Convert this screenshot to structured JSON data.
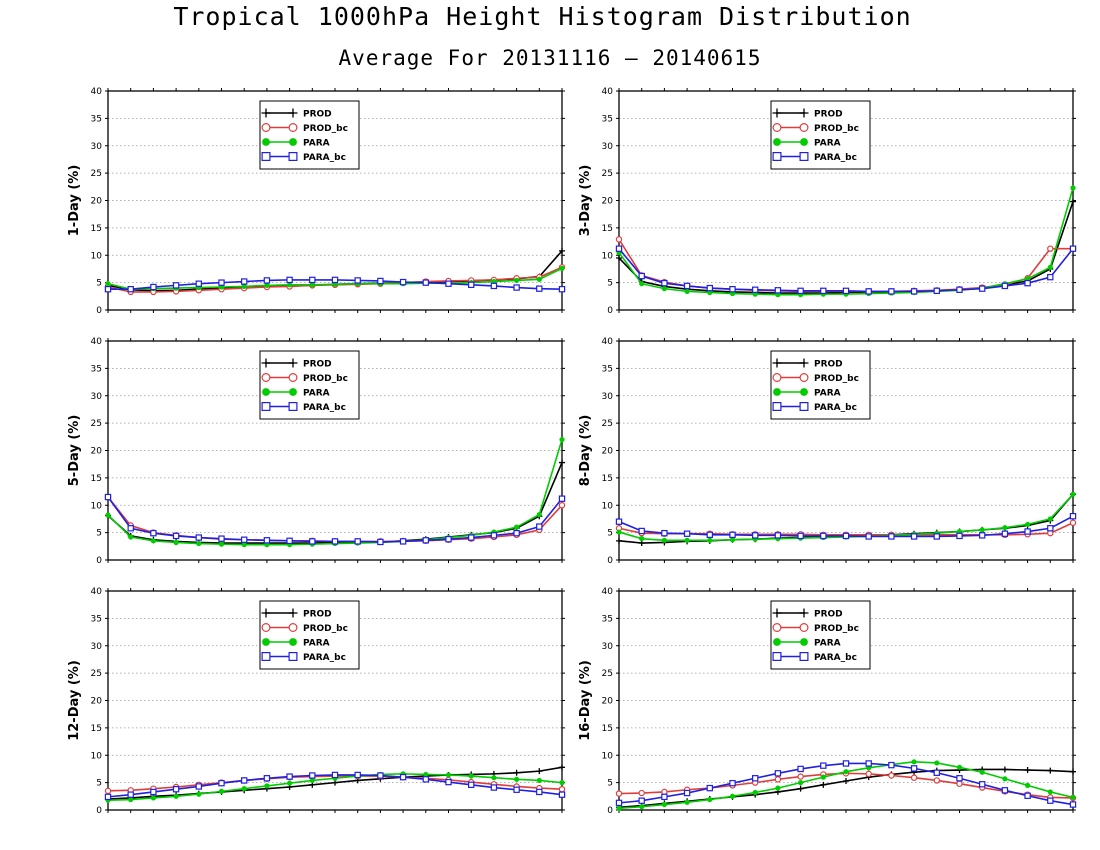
{
  "title": "Tropical 1000hPa Height Histogram Distribution",
  "subtitle": "Average For 20131116 – 20140615",
  "chart_data": [
    {
      "type": "line",
      "ylabel": "1-Day (%)",
      "ylim": [
        0,
        40
      ],
      "yticks": [
        0,
        5,
        10,
        15,
        20,
        25,
        30,
        35,
        40
      ],
      "grid": true,
      "legend_position": "top-left",
      "series": [
        {
          "name": "PROD",
          "color": "#000000",
          "marker": "plus",
          "values": [
            4.5,
            3.7,
            3.5,
            3.6,
            3.8,
            4.0,
            4.2,
            4.3,
            4.4,
            4.5,
            4.7,
            4.8,
            4.9,
            5.0,
            5.1,
            5.2,
            5.3,
            5.5,
            5.7,
            6.1,
            10.8
          ]
        },
        {
          "name": "PROD_bc",
          "color": "#e03c3c",
          "marker": "circle",
          "values": [
            4.2,
            3.3,
            3.3,
            3.4,
            3.6,
            3.8,
            4.0,
            4.2,
            4.3,
            4.5,
            4.6,
            4.7,
            4.8,
            5.0,
            5.2,
            5.3,
            5.4,
            5.5,
            5.8,
            6.0,
            7.8
          ]
        },
        {
          "name": "PARA",
          "color": "#00cc00",
          "marker": "filled-circle",
          "values": [
            4.8,
            3.8,
            3.9,
            4.0,
            4.1,
            4.2,
            4.3,
            4.5,
            4.6,
            4.6,
            4.7,
            4.8,
            4.8,
            4.8,
            4.9,
            4.9,
            5.0,
            5.2,
            5.4,
            5.6,
            7.6
          ]
        },
        {
          "name": "PARA_bc",
          "color": "#2020e0",
          "marker": "square",
          "values": [
            3.8,
            3.8,
            4.2,
            4.5,
            4.8,
            5.0,
            5.2,
            5.4,
            5.5,
            5.5,
            5.5,
            5.4,
            5.3,
            5.1,
            5.0,
            4.8,
            4.6,
            4.4,
            4.1,
            3.9,
            3.8
          ]
        }
      ]
    },
    {
      "type": "line",
      "ylabel": "3-Day (%)",
      "ylim": [
        0,
        40
      ],
      "yticks": [
        0,
        5,
        10,
        15,
        20,
        25,
        30,
        35,
        40
      ],
      "grid": true,
      "legend_position": "top-center",
      "series": [
        {
          "name": "PROD",
          "color": "#000000",
          "marker": "plus",
          "values": [
            9.5,
            5.2,
            4.3,
            3.8,
            3.5,
            3.3,
            3.2,
            3.1,
            3.1,
            3.1,
            3.2,
            3.3,
            3.3,
            3.4,
            3.5,
            3.7,
            4.0,
            4.6,
            5.3,
            7.5,
            19.8
          ]
        },
        {
          "name": "PROD_bc",
          "color": "#e03c3c",
          "marker": "circle",
          "values": [
            12.9,
            6.3,
            5.1,
            4.4,
            4.0,
            3.8,
            3.6,
            3.5,
            3.4,
            3.4,
            3.4,
            3.4,
            3.4,
            3.5,
            3.6,
            3.8,
            4.1,
            4.6,
            5.8,
            11.2,
            11.2
          ]
        },
        {
          "name": "PARA",
          "color": "#00cc00",
          "marker": "filled-circle",
          "values": [
            10.5,
            4.8,
            3.9,
            3.4,
            3.2,
            3.0,
            2.9,
            2.8,
            2.8,
            2.9,
            2.9,
            3.0,
            3.1,
            3.2,
            3.4,
            3.6,
            4.0,
            4.8,
            5.7,
            7.8,
            22.3
          ]
        },
        {
          "name": "PARA_bc",
          "color": "#2020e0",
          "marker": "square",
          "values": [
            11.2,
            6.2,
            4.9,
            4.4,
            4.0,
            3.8,
            3.7,
            3.6,
            3.5,
            3.5,
            3.5,
            3.4,
            3.4,
            3.4,
            3.5,
            3.7,
            3.9,
            4.4,
            4.9,
            6.0,
            11.2
          ]
        }
      ]
    },
    {
      "type": "line",
      "ylabel": "5-Day (%)",
      "ylim": [
        0,
        40
      ],
      "yticks": [
        0,
        5,
        10,
        15,
        20,
        25,
        30,
        35,
        40
      ],
      "grid": true,
      "legend_position": "top-left",
      "series": [
        {
          "name": "PROD",
          "color": "#000000",
          "marker": "plus",
          "values": [
            8.1,
            4.4,
            3.7,
            3.4,
            3.2,
            3.1,
            3.1,
            3.1,
            3.1,
            3.1,
            3.2,
            3.3,
            3.3,
            3.5,
            3.8,
            4.2,
            4.6,
            5.0,
            5.8,
            8.0,
            17.8
          ]
        },
        {
          "name": "PROD_bc",
          "color": "#e03c3c",
          "marker": "circle",
          "values": [
            11.5,
            6.3,
            5.0,
            4.5,
            4.1,
            3.8,
            3.7,
            3.6,
            3.5,
            3.5,
            3.4,
            3.4,
            3.4,
            3.4,
            3.5,
            3.7,
            3.9,
            4.2,
            4.6,
            5.5,
            10.0
          ]
        },
        {
          "name": "PARA",
          "color": "#00cc00",
          "marker": "filled-circle",
          "values": [
            8.2,
            4.2,
            3.5,
            3.2,
            3.0,
            2.9,
            2.8,
            2.8,
            2.8,
            2.9,
            3.0,
            3.1,
            3.2,
            3.4,
            3.7,
            4.1,
            4.5,
            5.1,
            6.0,
            8.3,
            22.0
          ]
        },
        {
          "name": "PARA_bc",
          "color": "#2020e0",
          "marker": "square",
          "values": [
            11.5,
            5.8,
            4.9,
            4.4,
            4.1,
            3.9,
            3.7,
            3.6,
            3.5,
            3.4,
            3.4,
            3.4,
            3.3,
            3.4,
            3.6,
            3.8,
            4.1,
            4.5,
            4.9,
            6.1,
            11.2
          ]
        }
      ]
    },
    {
      "type": "line",
      "ylabel": "8-Day (%)",
      "ylim": [
        0,
        40
      ],
      "yticks": [
        0,
        5,
        10,
        15,
        20,
        25,
        30,
        35,
        40
      ],
      "grid": true,
      "legend_position": "top-center",
      "series": [
        {
          "name": "PROD",
          "color": "#000000",
          "marker": "plus",
          "values": [
            3.5,
            3.1,
            3.2,
            3.4,
            3.5,
            3.7,
            3.8,
            4.0,
            4.1,
            4.3,
            4.4,
            4.5,
            4.6,
            4.8,
            5.0,
            5.2,
            5.5,
            5.8,
            6.3,
            7.2,
            12.0
          ]
        },
        {
          "name": "PROD_bc",
          "color": "#e03c3c",
          "marker": "circle",
          "values": [
            5.8,
            4.9,
            4.8,
            4.8,
            4.8,
            4.7,
            4.7,
            4.7,
            4.7,
            4.6,
            4.6,
            4.6,
            4.6,
            4.6,
            4.6,
            4.6,
            4.6,
            4.6,
            4.7,
            4.9,
            6.8
          ]
        },
        {
          "name": "PARA",
          "color": "#00cc00",
          "marker": "filled-circle",
          "values": [
            5.1,
            3.9,
            3.6,
            3.6,
            3.6,
            3.7,
            3.8,
            3.9,
            4.0,
            4.1,
            4.2,
            4.3,
            4.5,
            4.7,
            4.9,
            5.2,
            5.5,
            5.9,
            6.5,
            7.5,
            12.0
          ]
        },
        {
          "name": "PARA_bc",
          "color": "#2020e0",
          "marker": "square",
          "values": [
            7.0,
            5.3,
            4.9,
            4.8,
            4.6,
            4.6,
            4.5,
            4.5,
            4.4,
            4.4,
            4.4,
            4.3,
            4.3,
            4.3,
            4.3,
            4.4,
            4.5,
            4.8,
            5.2,
            5.8,
            8.0
          ]
        }
      ]
    },
    {
      "type": "line",
      "ylabel": "12-Day (%)",
      "ylim": [
        0,
        40
      ],
      "yticks": [
        0,
        5,
        10,
        15,
        20,
        25,
        30,
        35,
        40
      ],
      "grid": true,
      "legend_position": "top-left",
      "series": [
        {
          "name": "PROD",
          "color": "#000000",
          "marker": "plus",
          "values": [
            2.0,
            2.2,
            2.5,
            2.7,
            3.0,
            3.3,
            3.6,
            3.9,
            4.2,
            4.6,
            5.0,
            5.4,
            5.7,
            6.0,
            6.2,
            6.4,
            6.5,
            6.6,
            6.8,
            7.1,
            7.8
          ]
        },
        {
          "name": "PROD_bc",
          "color": "#e03c3c",
          "marker": "circle",
          "values": [
            3.5,
            3.6,
            3.9,
            4.2,
            4.6,
            5.0,
            5.4,
            5.7,
            6.0,
            6.1,
            6.2,
            6.2,
            6.2,
            6.0,
            5.8,
            5.5,
            5.1,
            4.7,
            4.3,
            4.0,
            3.8
          ]
        },
        {
          "name": "PARA",
          "color": "#00cc00",
          "marker": "filled-circle",
          "values": [
            1.8,
            1.9,
            2.2,
            2.5,
            2.9,
            3.4,
            3.9,
            4.4,
            4.9,
            5.4,
            5.8,
            6.2,
            6.5,
            6.6,
            6.5,
            6.4,
            6.2,
            5.9,
            5.6,
            5.4,
            5.0
          ]
        },
        {
          "name": "PARA_bc",
          "color": "#2020e0",
          "marker": "square",
          "values": [
            2.4,
            2.8,
            3.3,
            3.8,
            4.3,
            4.9,
            5.4,
            5.8,
            6.1,
            6.3,
            6.4,
            6.4,
            6.3,
            6.0,
            5.6,
            5.1,
            4.6,
            4.1,
            3.7,
            3.3,
            2.8
          ]
        }
      ]
    },
    {
      "type": "line",
      "ylabel": "16-Day (%)",
      "ylim": [
        0,
        40
      ],
      "yticks": [
        0,
        5,
        10,
        15,
        20,
        25,
        30,
        35,
        40
      ],
      "grid": true,
      "legend_position": "top-center",
      "series": [
        {
          "name": "PROD",
          "color": "#000000",
          "marker": "plus",
          "values": [
            0.5,
            0.8,
            1.2,
            1.6,
            2.0,
            2.4,
            2.8,
            3.3,
            3.9,
            4.6,
            5.3,
            6.0,
            6.5,
            6.9,
            7.2,
            7.3,
            7.4,
            7.4,
            7.3,
            7.2,
            7.0
          ]
        },
        {
          "name": "PROD_bc",
          "color": "#e03c3c",
          "marker": "circle",
          "values": [
            3.0,
            3.1,
            3.3,
            3.7,
            4.0,
            4.5,
            5.0,
            5.6,
            6.1,
            6.5,
            6.7,
            6.6,
            6.3,
            5.9,
            5.4,
            4.8,
            4.1,
            3.4,
            2.8,
            2.3,
            2.2
          ]
        },
        {
          "name": "PARA",
          "color": "#00cc00",
          "marker": "filled-circle",
          "values": [
            0.3,
            0.6,
            1.0,
            1.4,
            1.9,
            2.5,
            3.2,
            4.0,
            5.0,
            6.0,
            7.0,
            7.7,
            8.3,
            8.8,
            8.6,
            7.8,
            6.9,
            5.7,
            4.5,
            3.3,
            2.3
          ]
        },
        {
          "name": "PARA_bc",
          "color": "#2020e0",
          "marker": "square",
          "values": [
            1.3,
            1.7,
            2.4,
            3.1,
            4.0,
            4.9,
            5.8,
            6.7,
            7.5,
            8.1,
            8.5,
            8.5,
            8.2,
            7.6,
            6.8,
            5.8,
            4.7,
            3.6,
            2.6,
            1.7,
            1.0
          ]
        }
      ]
    }
  ]
}
